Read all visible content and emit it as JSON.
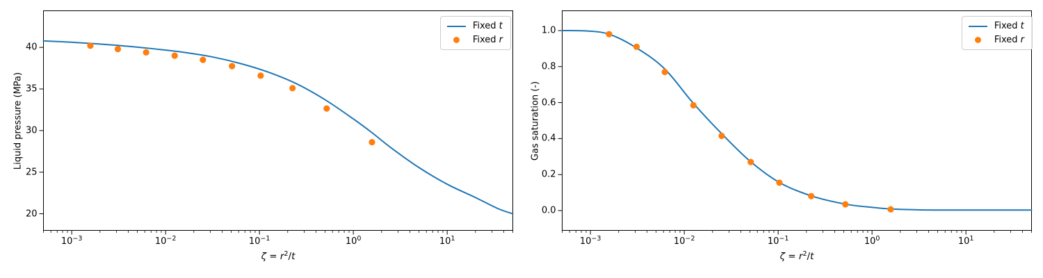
{
  "figure": {
    "background": "#ffffff"
  },
  "colors": {
    "line": "#1f77b4",
    "marker": "#ff7f0e",
    "text": "#000000",
    "spine": "#000000",
    "legend_border": "#cccccc",
    "legend_background": "#ffffff"
  },
  "legend": {
    "location": "upper right",
    "entries": [
      {
        "prefix": "Fixed ",
        "var": "t",
        "swatch": "line"
      },
      {
        "prefix": "Fixed ",
        "var": "r",
        "swatch": "dot"
      }
    ]
  },
  "xlabel_parts": {
    "zeta": "ζ",
    "eq": " = ",
    "rvar": "r",
    "rexp": "2",
    "slash": "/",
    "tvar": "t"
  },
  "chart_data": [
    {
      "id": "liquid-pressure",
      "type": "line+scatter",
      "title": "",
      "xlabel": "ζ = r²/t",
      "ylabel": "Liquid pressure (MPa)",
      "xscale": "log",
      "grid": false,
      "xlim": [
        0.0005,
        50
      ],
      "ylim": [
        18.0,
        44.4
      ],
      "yticks": [
        20,
        25,
        30,
        35,
        40
      ],
      "ytick_labels": [
        "20",
        "25",
        "30",
        "35",
        "40"
      ],
      "xticks": [
        {
          "value": 0.001,
          "base": "10",
          "exp": "−3"
        },
        {
          "value": 0.01,
          "base": "10",
          "exp": "−2"
        },
        {
          "value": 0.1,
          "base": "10",
          "exp": "−1"
        },
        {
          "value": 1,
          "base": "10",
          "exp": "0"
        },
        {
          "value": 10,
          "base": "10",
          "exp": "1"
        }
      ],
      "series": [
        {
          "name": "Fixed t",
          "type": "line",
          "color": "#1f77b4",
          "x": [
            0.0005,
            0.001,
            0.002,
            0.004,
            0.0079,
            0.0158,
            0.0316,
            0.0631,
            0.126,
            0.251,
            0.501,
            1.0,
            1.58,
            2.51,
            5.01,
            10.0,
            20.0,
            35.0,
            50.0
          ],
          "y": [
            40.78,
            40.62,
            40.4,
            40.13,
            39.8,
            39.4,
            38.85,
            38.05,
            37.0,
            35.6,
            33.7,
            31.4,
            29.75,
            27.95,
            25.55,
            23.55,
            21.95,
            20.6,
            20.0
          ]
        },
        {
          "name": "Fixed r",
          "type": "scatter",
          "color": "#ff7f0e",
          "x": [
            0.00158,
            0.0031,
            0.0062,
            0.0125,
            0.025,
            0.051,
            0.103,
            0.225,
            0.52,
            1.58
          ],
          "y": [
            40.2,
            39.8,
            39.4,
            39.0,
            38.5,
            37.75,
            36.6,
            35.1,
            32.65,
            28.6
          ]
        }
      ]
    },
    {
      "id": "gas-saturation",
      "type": "line+scatter",
      "title": "",
      "xlabel": "ζ = r²/t",
      "ylabel": "Gas saturation (-)",
      "xscale": "log",
      "grid": false,
      "xlim": [
        0.0005,
        50
      ],
      "ylim": [
        -0.11,
        1.11
      ],
      "yticks": [
        0.0,
        0.2,
        0.4,
        0.6,
        0.8,
        1.0
      ],
      "ytick_labels": [
        "0.0",
        "0.2",
        "0.4",
        "0.6",
        "0.8",
        "1.0"
      ],
      "xticks": [
        {
          "value": 0.001,
          "base": "10",
          "exp": "−3"
        },
        {
          "value": 0.01,
          "base": "10",
          "exp": "−2"
        },
        {
          "value": 0.1,
          "base": "10",
          "exp": "−1"
        },
        {
          "value": 1,
          "base": "10",
          "exp": "0"
        },
        {
          "value": 10,
          "base": "10",
          "exp": "1"
        }
      ],
      "series": [
        {
          "name": "Fixed t",
          "type": "line",
          "color": "#1f77b4",
          "x": [
            0.0005,
            0.0009,
            0.00158,
            0.003,
            0.0061,
            0.0123,
            0.0245,
            0.05,
            0.104,
            0.225,
            0.52,
            1.0,
            1.58,
            3.2,
            8.0,
            20.0,
            50.0
          ],
          "y": [
            1.0,
            0.998,
            0.98,
            0.908,
            0.79,
            0.6,
            0.432,
            0.275,
            0.155,
            0.082,
            0.036,
            0.018,
            0.009,
            0.004,
            0.003,
            0.003,
            0.003
          ]
        },
        {
          "name": "Fixed r",
          "type": "scatter",
          "color": "#ff7f0e",
          "x": [
            0.00158,
            0.0031,
            0.0062,
            0.0125,
            0.025,
            0.051,
            0.103,
            0.225,
            0.52,
            1.58
          ],
          "y": [
            0.98,
            0.91,
            0.77,
            0.585,
            0.415,
            0.27,
            0.155,
            0.08,
            0.035,
            0.007
          ]
        }
      ]
    }
  ]
}
